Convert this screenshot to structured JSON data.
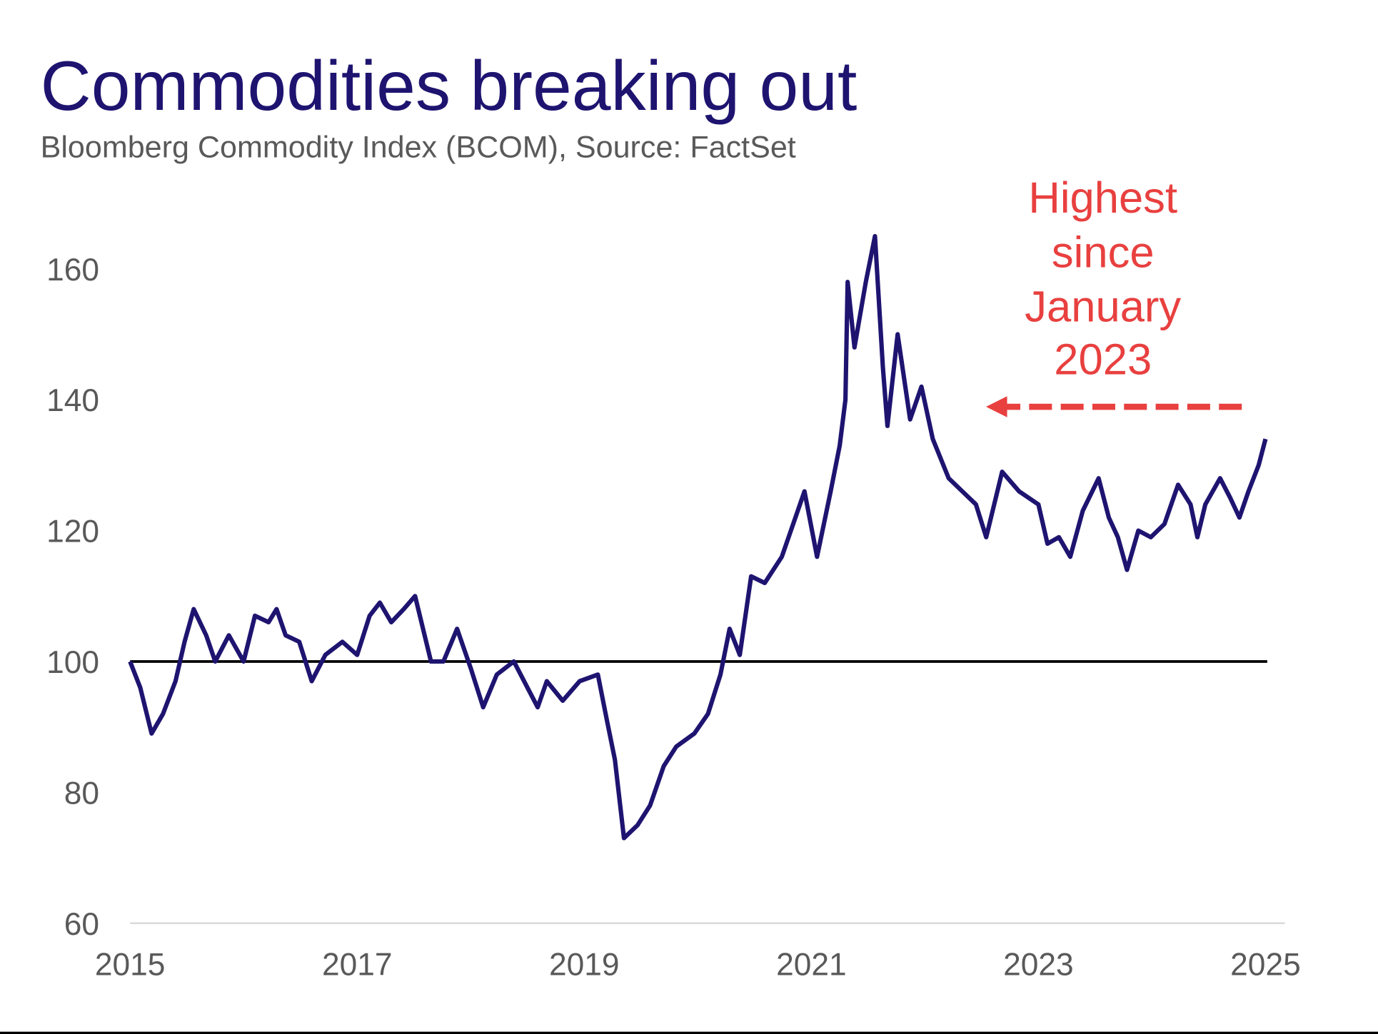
{
  "chart_data": {
    "type": "line",
    "title": "Commodities breaking out",
    "subtitle": "Bloomberg Commodity Index (BCOM), Source: FactSet",
    "xlabel": "",
    "ylabel": "",
    "xlim": [
      2015,
      2025
    ],
    "ylim": [
      60,
      160
    ],
    "x_ticks": [
      "2015",
      "2017",
      "2019",
      "2021",
      "2023",
      "2025"
    ],
    "y_ticks": [
      "60",
      "80",
      "100",
      "120",
      "140",
      "160"
    ],
    "reference_line": 100,
    "grid": false,
    "annotation": {
      "lines": [
        "Highest",
        "since",
        "January",
        "2023"
      ],
      "arrow_direction": "left"
    },
    "colors": {
      "series": "#1e1470",
      "annotation": "#e8403f",
      "reference": "#000000",
      "title": "#1e1470"
    },
    "series": [
      {
        "name": "BCOM",
        "x": [
          2015.0,
          2015.09,
          2015.19,
          2015.29,
          2015.4,
          2015.48,
          2015.56,
          2015.67,
          2015.75,
          2015.87,
          2016.0,
          2016.1,
          2016.22,
          2016.29,
          2016.37,
          2016.49,
          2016.6,
          2016.72,
          2016.87,
          2017.0,
          2017.11,
          2017.2,
          2017.3,
          2017.41,
          2017.51,
          2017.65,
          2017.76,
          2017.88,
          2018.0,
          2018.11,
          2018.23,
          2018.38,
          2018.5,
          2018.59,
          2018.67,
          2018.81,
          2018.96,
          2019.12,
          2019.2,
          2019.27,
          2019.35,
          2019.47,
          2019.58,
          2019.7,
          2019.81,
          2019.97,
          2020.09,
          2020.2,
          2020.28,
          2020.37,
          2020.47,
          2020.59,
          2020.74,
          2020.86,
          2020.94,
          2021.05,
          2021.17,
          2021.25,
          2021.3,
          2021.32,
          2021.38,
          2021.48,
          2021.56,
          2021.63,
          2021.67,
          2021.76,
          2021.87,
          2021.97,
          2022.07,
          2022.21,
          2022.33,
          2022.45,
          2022.54,
          2022.68,
          2022.83,
          2023.0,
          2023.08,
          2023.18,
          2023.28,
          2023.39,
          2023.53,
          2023.62,
          2023.7,
          2023.78,
          2023.88,
          2023.99,
          2024.11,
          2024.23,
          2024.34,
          2024.4,
          2024.47,
          2024.6,
          2024.69,
          2024.77,
          2024.85,
          2024.94,
          2025.0
        ],
        "values": [
          100,
          96,
          89,
          92,
          97,
          103,
          108,
          104,
          100,
          104,
          100,
          107,
          106,
          108,
          104,
          103,
          97,
          101,
          103,
          101,
          107,
          109,
          106,
          108,
          110,
          100,
          100,
          105,
          99,
          93,
          98,
          100,
          96,
          93,
          97,
          94,
          97,
          98,
          91,
          85,
          73,
          75,
          78,
          84,
          87,
          89,
          92,
          98,
          105,
          101,
          113,
          112,
          116,
          122,
          126,
          116,
          126,
          133,
          140,
          158,
          148,
          158,
          165,
          145,
          136,
          150,
          137,
          142,
          134,
          128,
          126,
          124,
          119,
          129,
          126,
          124,
          118,
          119,
          116,
          123,
          128,
          122,
          119,
          114,
          120,
          119,
          121,
          127,
          124,
          119,
          124,
          128,
          125,
          122,
          126,
          130,
          134
        ]
      }
    ]
  }
}
